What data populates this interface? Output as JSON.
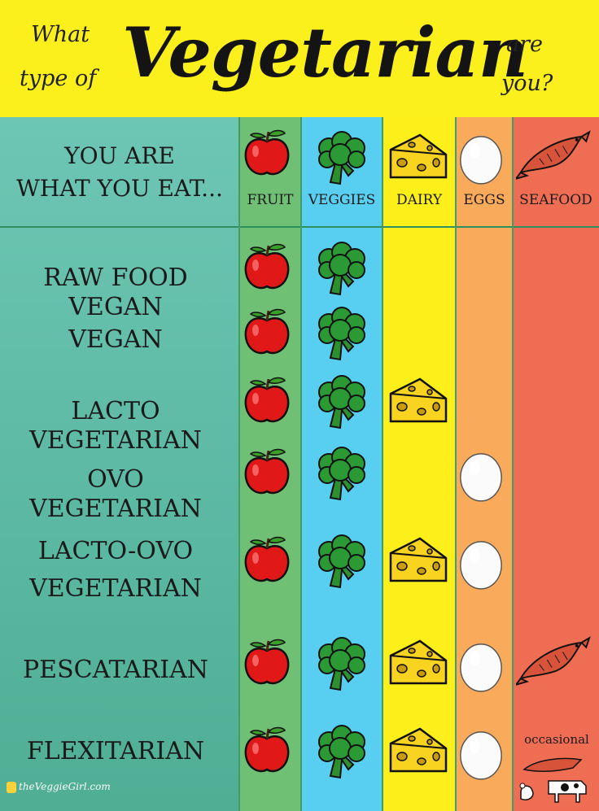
{
  "header": {
    "line1_left": "What",
    "line2_left": "type of",
    "big_word": "Vegetarian",
    "line1_right": "are",
    "line2_right": "you?"
  },
  "tagline": {
    "line1": "YOU ARE",
    "line2": "WHAT YOU EAT..."
  },
  "columns": [
    {
      "label": "Fruit",
      "icon": "apple-icon",
      "color": "#6fbf75"
    },
    {
      "label": "Veggies",
      "icon": "broccoli-icon",
      "color": "#58cff0"
    },
    {
      "label": "Dairy",
      "icon": "cheese-icon",
      "color": "#fdef1a"
    },
    {
      "label": "Eggs",
      "icon": "egg-icon",
      "color": "#f9ab5b"
    },
    {
      "label": "Seafood",
      "icon": "fish-icon",
      "color": "#ef6d53"
    }
  ],
  "rows": [
    {
      "line1": "RAW FOOD VEGAN",
      "line2": "",
      "foods": [
        "fruit",
        "veggies"
      ]
    },
    {
      "line1": "VEGAN",
      "line2": "",
      "foods": [
        "fruit",
        "veggies"
      ]
    },
    {
      "line1": "LACTO VEGETARIAN",
      "line2": "",
      "foods": [
        "fruit",
        "veggies",
        "dairy"
      ]
    },
    {
      "line1": "OVO VEGETARIAN",
      "line2": "",
      "foods": [
        "fruit",
        "veggies",
        "eggs"
      ]
    },
    {
      "line1": "LACTO-OVO",
      "line2": "VEGETARIAN",
      "foods": [
        "fruit",
        "veggies",
        "dairy",
        "eggs"
      ]
    },
    {
      "line1": "PESCATARIAN",
      "line2": "",
      "foods": [
        "fruit",
        "veggies",
        "dairy",
        "eggs",
        "seafood"
      ]
    },
    {
      "line1": "FLEXITARIAN",
      "line2": "",
      "foods": [
        "fruit",
        "veggies",
        "dairy",
        "eggs",
        "occasional"
      ]
    }
  ],
  "occasional_label": "occasional",
  "logo": "theVeggieGirl.com"
}
